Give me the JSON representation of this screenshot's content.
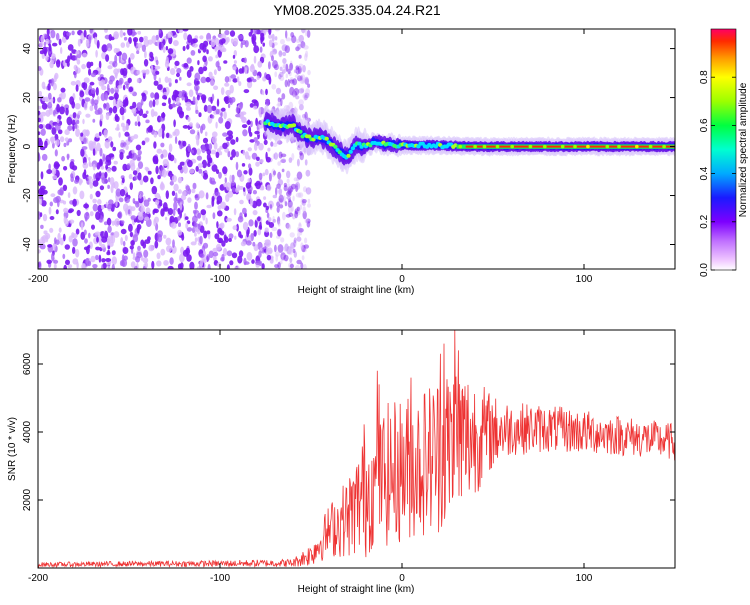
{
  "title": "YM08.2025.335.04.24.R21",
  "chart_data": [
    {
      "type": "heatmap",
      "xlabel": "Height of straight line (km)",
      "ylabel": "Frequency (Hz)",
      "xlim": [
        -200,
        150
      ],
      "ylim": [
        -50,
        48
      ],
      "xticks": [
        -200,
        -100,
        0,
        100
      ],
      "yticks": [
        -40,
        -20,
        0,
        20,
        40
      ],
      "ridge": {
        "x": [
          -75,
          -65,
          -60,
          -55,
          -50,
          -45,
          -40,
          -35,
          -30,
          -25,
          -20,
          -15,
          -10,
          0,
          20,
          40,
          60,
          80,
          100,
          120,
          150
        ],
        "y": [
          10,
          8,
          9,
          5,
          3,
          4,
          2,
          -2,
          -4,
          1,
          0,
          2,
          1,
          0.5,
          0.5,
          0,
          0,
          0,
          0,
          0,
          0
        ]
      },
      "noise_region_x": [
        -200,
        -57
      ],
      "colorbar": {
        "label": "Normalized spectral amplitude",
        "range": [
          0.0,
          1.0
        ],
        "ticks": [
          0.0,
          0.2,
          0.4,
          0.6,
          0.8
        ],
        "tick_labels": [
          "0.0",
          "0.2",
          "0.4",
          "0.6",
          "0.8"
        ]
      },
      "grid": false
    },
    {
      "type": "line",
      "xlabel": "Height of straight line (km)",
      "ylabel": "SNR (10 * v/v)",
      "xlim": [
        -200,
        150
      ],
      "ylim": [
        0,
        7000
      ],
      "xticks": [
        -200,
        -100,
        0,
        100
      ],
      "yticks": [
        2000,
        4000,
        6000
      ],
      "series": [
        {
          "color": "#ee3333",
          "envelope_x": [
            -200,
            -150,
            -100,
            -60,
            -50,
            -40,
            -30,
            -25,
            -20,
            -15,
            -10,
            0,
            10,
            20,
            30,
            40,
            50,
            60,
            80,
            100,
            120,
            150
          ],
          "envelope_mean": [
            100,
            120,
            130,
            150,
            400,
            1100,
            1500,
            1800,
            2400,
            2300,
            2700,
            2900,
            3100,
            3400,
            3700,
            3900,
            4000,
            4100,
            4100,
            4000,
            3900,
            3700
          ],
          "envelope_amp": [
            70,
            80,
            90,
            120,
            350,
            800,
            1200,
            1500,
            2200,
            1600,
            2100,
            2200,
            2200,
            2400,
            2600,
            1800,
            1100,
            800,
            700,
            650,
            600,
            550
          ],
          "peaks": [
            [
              -13.5,
              5800
            ],
            [
              -12.5,
              5400
            ],
            [
              5,
              5600
            ],
            [
              21,
              6300
            ],
            [
              23,
              6600
            ],
            [
              29,
              7000
            ],
            [
              31,
              6400
            ]
          ]
        }
      ],
      "grid": false
    }
  ]
}
